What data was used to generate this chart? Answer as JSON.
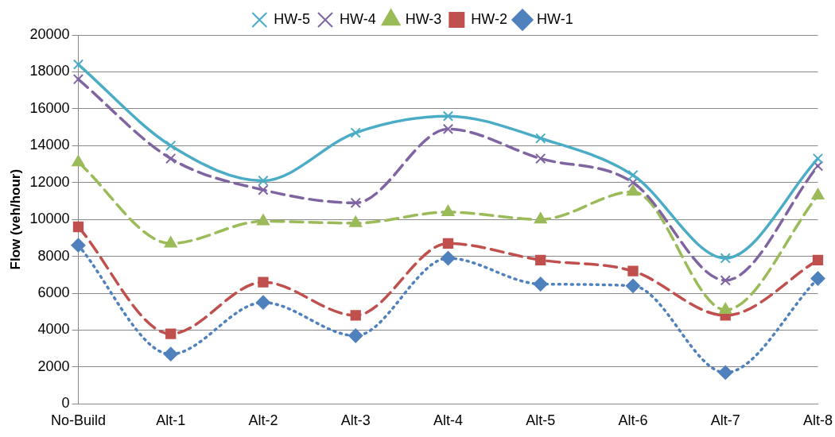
{
  "chart_data": {
    "type": "line",
    "ylabel": "Flow (veh/hour)",
    "categories": [
      "No-Build",
      "Alt-1",
      "Alt-2",
      "Alt-3",
      "Alt-4",
      "Alt-5",
      "Alt-6",
      "Alt-7",
      "Alt-8"
    ],
    "ylim": [
      0,
      20000
    ],
    "yticks": [
      0,
      2000,
      4000,
      6000,
      8000,
      10000,
      12000,
      14000,
      16000,
      18000,
      20000
    ],
    "grid": "y",
    "legend": "top",
    "series": [
      {
        "name": "HW-5",
        "color": "#4bacc6",
        "marker": "cross",
        "line_style": "solid",
        "values": [
          18400,
          14000,
          12100,
          14700,
          15600,
          14400,
          12400,
          7900,
          13300
        ]
      },
      {
        "name": "HW-4",
        "color": "#8064a2",
        "marker": "cross",
        "line_style": "dashed",
        "values": [
          17600,
          13300,
          11600,
          10900,
          14900,
          13300,
          12000,
          6700,
          12900
        ]
      },
      {
        "name": "HW-3",
        "color": "#9bbb59",
        "marker": "triangle",
        "line_style": "dashed",
        "values": [
          13100,
          8700,
          9900,
          9800,
          10400,
          10000,
          11500,
          5100,
          11300
        ]
      },
      {
        "name": "HW-2",
        "color": "#c0504d",
        "marker": "square",
        "line_style": "dashed",
        "values": [
          9600,
          3800,
          6600,
          4800,
          8700,
          7800,
          7200,
          4800,
          7800
        ]
      },
      {
        "name": "HW-1",
        "color": "#4f81bd",
        "marker": "diamond",
        "line_style": "dotted",
        "values": [
          8600,
          2700,
          5500,
          3700,
          7900,
          6500,
          6400,
          1700,
          6800
        ]
      }
    ]
  }
}
